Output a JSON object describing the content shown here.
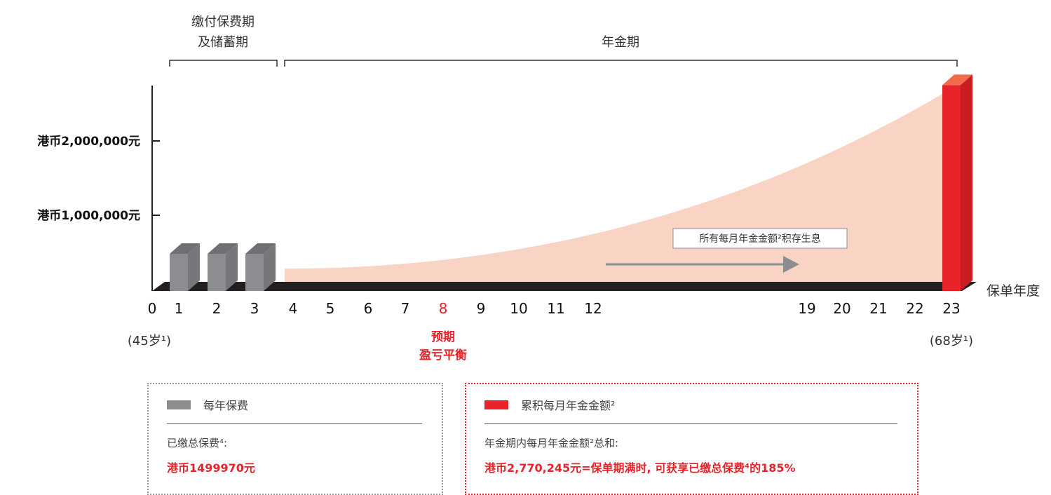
{
  "colors": {
    "premium": "#8c8d90",
    "annuity": "#e8232a",
    "area": "#f9d3c3",
    "axis": "#231f20",
    "arrow": "#8c8d90"
  },
  "periods": {
    "payment": [
      "缴付保费期",
      "及储蓄期"
    ],
    "annuity": "年金期"
  },
  "y_ticks": [
    "港币2,000,000元",
    "港币1,000,000元"
  ],
  "x_axis_name": "保单年度",
  "x_ticks": [
    "0",
    "1",
    "2",
    "3",
    "4",
    "5",
    "6",
    "7",
    "8",
    "9",
    "10",
    "11",
    "12",
    "19",
    "20",
    "21",
    "22",
    "23"
  ],
  "highlight_tick": "8",
  "ages": {
    "start": "(45岁¹)",
    "end": "(68岁¹)"
  },
  "breakeven": [
    "预期",
    "盈亏平衡"
  ],
  "annotation": "所有每月年金金额²积存生息",
  "legend": {
    "premium": {
      "label": "每年保费",
      "line": "已缴总保费⁴:",
      "value": "港币1499970元"
    },
    "annuity": {
      "label": "累积每月年金金额²",
      "line": "年金期内每月年金金额²总和:",
      "value": "港币2,770,245元=保单期满时, 可获享已缴总保费⁴的185%"
    }
  },
  "chart_data": {
    "type": "bar",
    "x_label": "保单年度",
    "categories": [
      "1",
      "2",
      "3",
      "23"
    ],
    "series": [
      {
        "name": "每年保费",
        "values": [
          499990,
          499990,
          499990,
          null
        ]
      },
      {
        "name": "累积每月年金金额²",
        "values": [
          null,
          null,
          null,
          2770245
        ]
      }
    ],
    "area_curve_x": [
      4,
      23
    ],
    "area_curve_y": [
      300000,
      2770245
    ],
    "ylim": [
      0,
      2770245
    ],
    "y_ticks": [
      1000000,
      2000000
    ],
    "grid": false
  }
}
